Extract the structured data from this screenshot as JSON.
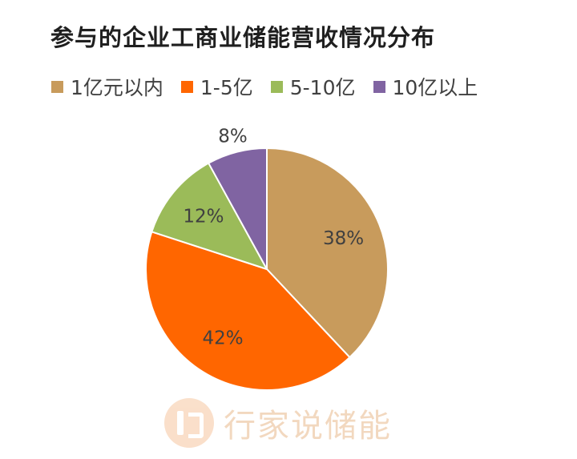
{
  "chart_data": {
    "type": "pie",
    "title": "参与的企业工商业储能营收情况分布",
    "legend_position": "top",
    "categories": [
      "1亿元以内",
      "1-5亿",
      "5-10亿",
      "10亿以上"
    ],
    "values": [
      38,
      42,
      12,
      8
    ],
    "labels": [
      "38%",
      "42%",
      "12%",
      "8%"
    ],
    "colors": [
      "#c89b5c",
      "#ff6600",
      "#9bbb59",
      "#8064a2"
    ]
  },
  "watermark": {
    "text": "行家说储能",
    "icon": "brand-logo-icon"
  }
}
